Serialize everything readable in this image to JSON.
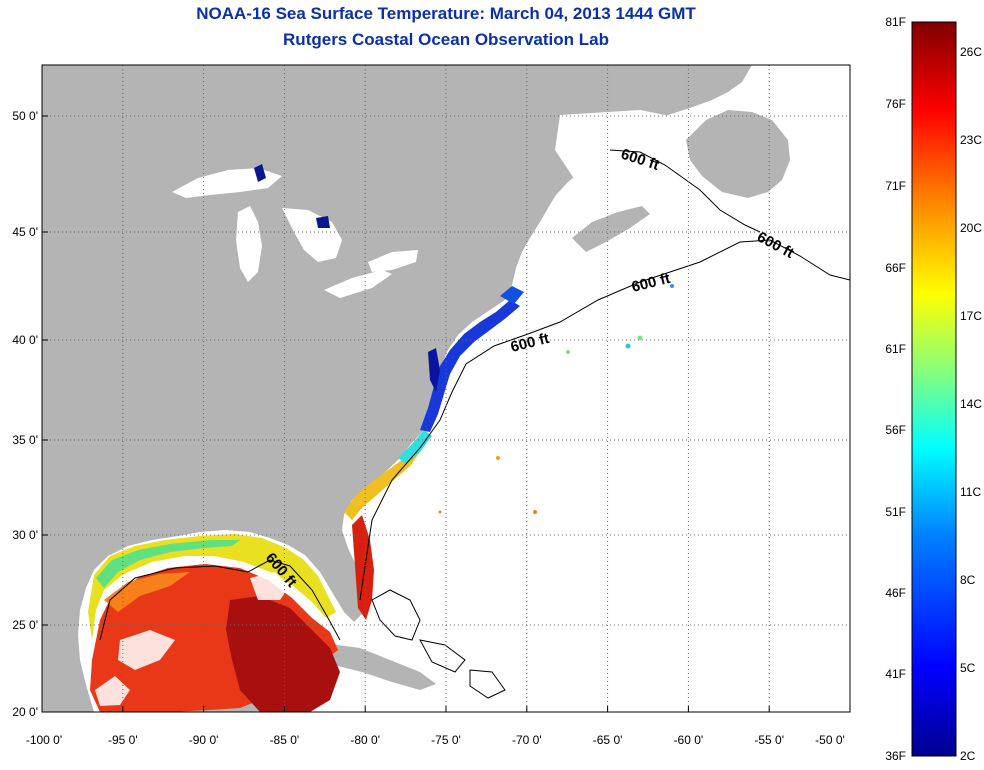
{
  "title": "NOAA-16 Sea Surface Temperature:  March 04, 2013 1444 GMT",
  "subtitle": "Rutgers Coastal Ocean Observation Lab",
  "axes": {
    "x_ticks": [
      "-100 0'",
      "-95 0'",
      "-90 0'",
      "-85 0'",
      "-80 0'",
      "-75 0'",
      "-70 0'",
      "-65 0'",
      "-60 0'",
      "-55 0'",
      "-50 0'"
    ],
    "y_ticks": [
      "50 0'",
      "45 0'",
      "40 0'",
      "35 0'",
      "30 0'",
      "25 0'",
      "20 0'"
    ]
  },
  "contours": [
    {
      "label": "600 ft",
      "rotate": 18
    },
    {
      "label": "600 ft",
      "rotate": 28
    },
    {
      "label": "600 ft",
      "rotate": -14
    },
    {
      "label": "600 ft",
      "rotate": -14
    },
    {
      "label": "600 ft",
      "rotate": 50
    }
  ],
  "colorbar": {
    "fahrenheit_labels": [
      "81F",
      "76F",
      "71F",
      "66F",
      "61F",
      "56F",
      "51F",
      "46F",
      "41F",
      "36F"
    ],
    "celsius_labels": [
      "26C",
      "23C",
      "20C",
      "17C",
      "14C",
      "11C",
      "8C",
      "5C",
      "2C"
    ],
    "colors": [
      "#00008f",
      "#0000ff",
      "#0080ff",
      "#00ffff",
      "#80ff80",
      "#ffff00",
      "#ff8000",
      "#ff0000",
      "#800000"
    ]
  },
  "colors": {
    "land": "#b4b4b4",
    "ocean": "#ffffff",
    "title": "#0a2fb0"
  }
}
